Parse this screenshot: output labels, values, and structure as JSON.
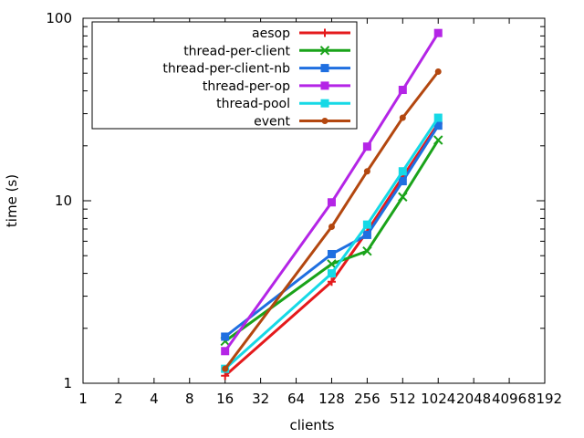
{
  "chart_data": {
    "type": "line",
    "title": "",
    "xlabel": "clients",
    "ylabel": "time (s)",
    "xscale": "log2",
    "yscale": "log10",
    "xlim": [
      1,
      8192
    ],
    "ylim": [
      1,
      100
    ],
    "xticks": [
      "1",
      "2",
      "4",
      "8",
      "16",
      "32",
      "64",
      "128",
      "256",
      "512",
      "1024",
      "2048",
      "4096",
      "8192"
    ],
    "yticks": [
      "1",
      "10",
      "100"
    ],
    "grid": false,
    "legend_position": "top-left",
    "x": [
      16,
      128,
      256,
      512,
      1024
    ],
    "series": [
      {
        "name": "aesop",
        "color": "#e41a1c",
        "marker": "plus",
        "values": [
          1.1,
          3.6,
          6.8,
          13.5,
          26.5
        ]
      },
      {
        "name": "thread-per-client",
        "color": "#1aa31a",
        "marker": "cross",
        "values": [
          1.7,
          4.5,
          5.3,
          10.5,
          21.5
        ]
      },
      {
        "name": "thread-per-client-nb",
        "color": "#1f6fe0",
        "marker": "square",
        "values": [
          1.8,
          5.1,
          6.5,
          12.8,
          25.8
        ]
      },
      {
        "name": "thread-per-op",
        "color": "#b425e6",
        "marker": "square",
        "values": [
          1.5,
          9.8,
          19.8,
          40.5,
          83.0
        ]
      },
      {
        "name": "thread-pool",
        "color": "#16d9e6",
        "marker": "square",
        "values": [
          1.2,
          4.0,
          7.4,
          14.5,
          28.5
        ]
      },
      {
        "name": "event",
        "color": "#b3470f",
        "marker": "circle",
        "values": [
          1.2,
          7.2,
          14.5,
          28.5,
          51.0
        ]
      }
    ]
  }
}
